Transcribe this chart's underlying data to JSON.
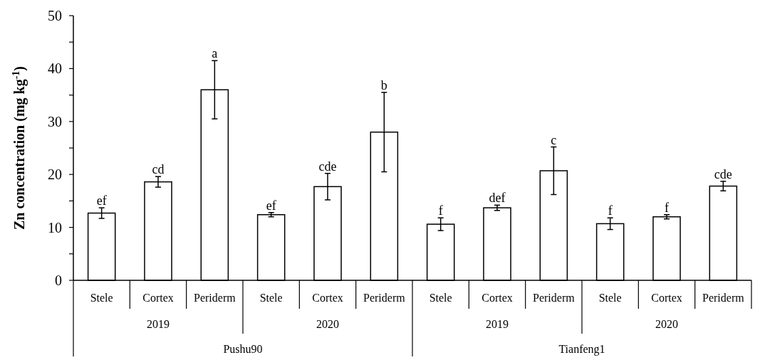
{
  "chart_data": {
    "type": "bar",
    "ylabel": "Zn concentration (mg kg$^{-1}$)",
    "categories": [
      "Stele",
      "Cortex",
      "Periderm",
      "Stele",
      "Cortex",
      "Periderm",
      "Stele",
      "Cortex",
      "Periderm",
      "Stele",
      "Cortex",
      "Periderm"
    ],
    "values": [
      12.7,
      18.6,
      36.0,
      12.4,
      17.7,
      28.0,
      10.6,
      13.7,
      20.7,
      10.7,
      12.0,
      17.8
    ],
    "errors": [
      1.0,
      1.0,
      5.5,
      0.4,
      2.5,
      7.5,
      1.2,
      0.5,
      4.5,
      1.1,
      0.4,
      0.9
    ],
    "value_labels": [
      "ef",
      "cd",
      "a",
      "ef",
      "cde",
      "b",
      "f",
      "def",
      "c",
      "f",
      "f",
      "cde"
    ],
    "color": "#ffffff",
    "ylim": [
      0,
      50
    ],
    "yticks": [
      0,
      10,
      20,
      30,
      40,
      50
    ],
    "annotations": [
      "2019",
      "2020",
      "2019",
      "2020",
      "Pushu90",
      "Tianfeng1"
    ]
  }
}
